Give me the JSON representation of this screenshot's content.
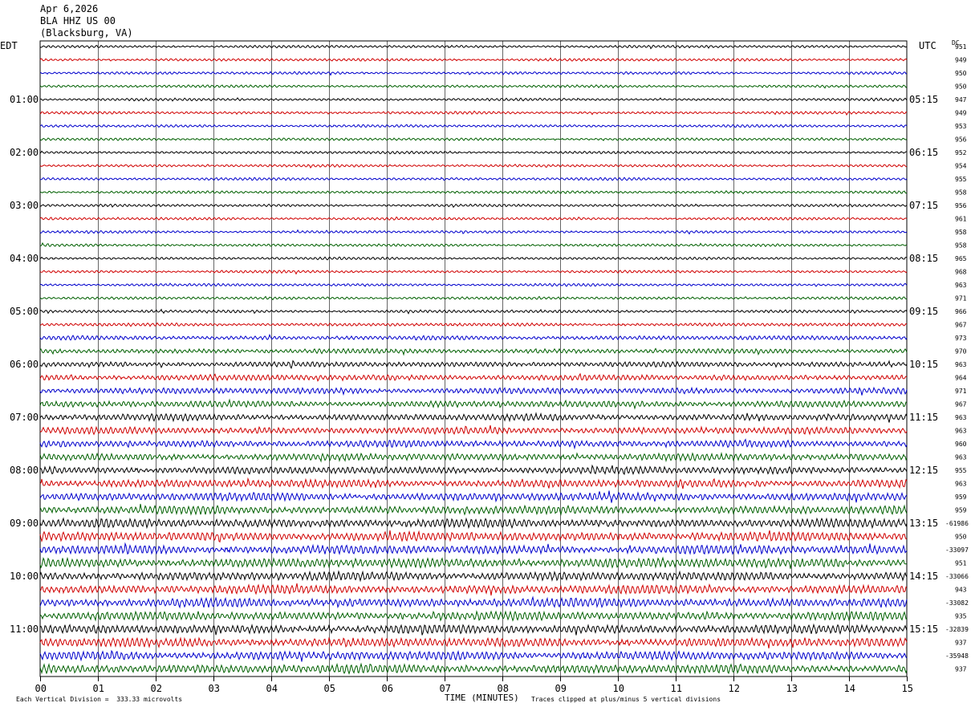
{
  "header": {
    "date": "Apr 6,2026",
    "station": "BLA HHZ US 00",
    "location": "(Blacksburg, VA)"
  },
  "left_timezone": "EDT",
  "right_timezone": "UTC",
  "dc_label": "DC",
  "footer": {
    "scale_note": "Each Vertical Division =  333.33 microvolts",
    "xlabel": "TIME (MINUTES)",
    "clip_note": "Traces clipped at plus/minus 5 vertical divisions"
  },
  "chart_data": {
    "type": "line",
    "xlabel": "TIME (MINUTES)",
    "xlim": [
      0,
      15
    ],
    "x_ticks": [
      "00",
      "01",
      "02",
      "03",
      "04",
      "05",
      "06",
      "07",
      "08",
      "09",
      "10",
      "11",
      "12",
      "13",
      "14",
      "15"
    ],
    "trace_colors": [
      "#000000",
      "#d00000",
      "#0000cc",
      "#006000"
    ],
    "rows_per_hour": 4,
    "left_hour_labels": [
      "01:00",
      "02:00",
      "03:00",
      "04:00",
      "05:00",
      "06:00",
      "07:00",
      "08:00",
      "09:00",
      "10:00",
      "11:00"
    ],
    "right_hour_labels": [
      "05:15",
      "06:15",
      "07:15",
      "08:15",
      "09:15",
      "10:15",
      "11:15",
      "12:15",
      "13:15",
      "14:15",
      "15:15"
    ],
    "dc_offsets": [
      "951",
      "949",
      "950",
      "950",
      "947",
      "949",
      "953",
      "956",
      "952",
      "954",
      "955",
      "958",
      "956",
      "961",
      "958",
      "958",
      "965",
      "968",
      "963",
      "971",
      "966",
      "967",
      "973",
      "970",
      "963",
      "964",
      "971",
      "967",
      "963",
      "963",
      "960",
      "963",
      "955",
      "963",
      "959",
      "959",
      "-61986",
      "950",
      "-33097",
      "951",
      "-33066",
      "943",
      "-33082",
      "935",
      "-32839",
      "937",
      "-35948",
      "937"
    ],
    "trace_amplitudes": [
      1,
      1,
      1,
      1,
      1,
      1,
      1,
      1,
      1,
      1,
      1,
      1,
      1,
      1,
      1,
      1,
      1,
      1,
      1,
      1,
      1.1,
      1.2,
      1.6,
      1.8,
      2,
      2.2,
      2.3,
      2.4,
      2.5,
      2.6,
      2.6,
      2.7,
      2.8,
      3,
      3,
      3.1,
      3.3,
      3.4,
      3.4,
      3.5,
      3.3,
      3.3,
      3.4,
      3.2,
      3.3,
      3.4,
      3.3,
      3.4
    ]
  }
}
